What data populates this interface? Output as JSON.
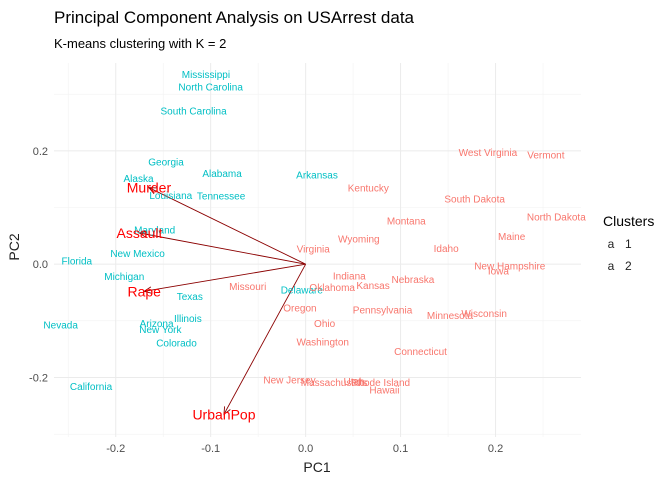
{
  "chart_data": {
    "type": "scatter",
    "title": "Principal Component Analysis on USArrest data",
    "subtitle": "K-means clustering with K = 2",
    "xlabel": "PC1",
    "ylabel": "PC2",
    "xlim": [
      -0.265,
      0.29
    ],
    "ylim": [
      -0.305,
      0.355
    ],
    "x_ticks": [
      -0.2,
      -0.1,
      0.0,
      0.1,
      0.2
    ],
    "x_tick_labels": [
      "-0.2",
      "-0.1",
      "0.0",
      "0.1",
      "0.2"
    ],
    "y_ticks": [
      -0.2,
      0.0,
      0.2
    ],
    "y_tick_labels": [
      "-0.2",
      "0.0",
      "0.2"
    ],
    "grid": true,
    "legend": {
      "title": "Clusters",
      "position": "right",
      "entries": [
        {
          "key": "1",
          "label": "1",
          "color": "#F8766D"
        },
        {
          "key": "2",
          "label": "2",
          "color": "#00BFC4"
        }
      ]
    },
    "points": [
      {
        "label": "Mississippi",
        "x": -0.105,
        "y": 0.335,
        "cluster": "2"
      },
      {
        "label": "North Carolina",
        "x": -0.1,
        "y": 0.313,
        "cluster": "2"
      },
      {
        "label": "South Carolina",
        "x": -0.118,
        "y": 0.27,
        "cluster": "2"
      },
      {
        "label": "Georgia",
        "x": -0.147,
        "y": 0.18,
        "cluster": "2"
      },
      {
        "label": "Alabama",
        "x": -0.088,
        "y": 0.16,
        "cluster": "2"
      },
      {
        "label": "Alaska",
        "x": -0.176,
        "y": 0.151,
        "cluster": "2"
      },
      {
        "label": "Louisiana",
        "x": -0.142,
        "y": 0.121,
        "cluster": "2"
      },
      {
        "label": "Tennessee",
        "x": -0.089,
        "y": 0.12,
        "cluster": "2"
      },
      {
        "label": "Arkansas",
        "x": 0.012,
        "y": 0.157,
        "cluster": "2"
      },
      {
        "label": "Maryland",
        "x": -0.159,
        "y": 0.06,
        "cluster": "2"
      },
      {
        "label": "New Mexico",
        "x": -0.177,
        "y": 0.019,
        "cluster": "2"
      },
      {
        "label": "Florida",
        "x": -0.241,
        "y": 0.006,
        "cluster": "2"
      },
      {
        "label": "Michigan",
        "x": -0.191,
        "y": -0.022,
        "cluster": "2"
      },
      {
        "label": "Texas",
        "x": -0.122,
        "y": -0.057,
        "cluster": "2"
      },
      {
        "label": "Illinois",
        "x": -0.124,
        "y": -0.096,
        "cluster": "2"
      },
      {
        "label": "Arizona",
        "x": -0.157,
        "y": -0.105,
        "cluster": "2"
      },
      {
        "label": "New York",
        "x": -0.153,
        "y": -0.115,
        "cluster": "2"
      },
      {
        "label": "Colorado",
        "x": -0.136,
        "y": -0.139,
        "cluster": "2"
      },
      {
        "label": "Nevada",
        "x": -0.258,
        "y": -0.107,
        "cluster": "2"
      },
      {
        "label": "California",
        "x": -0.226,
        "y": -0.216,
        "cluster": "2"
      },
      {
        "label": "Delaware",
        "x": -0.004,
        "y": -0.046,
        "cluster": "2"
      },
      {
        "label": "West Virginia",
        "x": 0.192,
        "y": 0.197,
        "cluster": "1"
      },
      {
        "label": "Vermont",
        "x": 0.253,
        "y": 0.193,
        "cluster": "1"
      },
      {
        "label": "Kentucky",
        "x": 0.066,
        "y": 0.134,
        "cluster": "1"
      },
      {
        "label": "South Dakota",
        "x": 0.178,
        "y": 0.115,
        "cluster": "1"
      },
      {
        "label": "North Dakota",
        "x": 0.264,
        "y": 0.083,
        "cluster": "1"
      },
      {
        "label": "Montana",
        "x": 0.106,
        "y": 0.076,
        "cluster": "1"
      },
      {
        "label": "Maine",
        "x": 0.217,
        "y": 0.049,
        "cluster": "1"
      },
      {
        "label": "Wyoming",
        "x": 0.056,
        "y": 0.044,
        "cluster": "1"
      },
      {
        "label": "Virginia",
        "x": 0.008,
        "y": 0.027,
        "cluster": "1"
      },
      {
        "label": "Idaho",
        "x": 0.148,
        "y": 0.028,
        "cluster": "1"
      },
      {
        "label": "New Hampshire",
        "x": 0.215,
        "y": -0.003,
        "cluster": "1"
      },
      {
        "label": "Iowa",
        "x": 0.203,
        "y": -0.012,
        "cluster": "1"
      },
      {
        "label": "Indiana",
        "x": 0.046,
        "y": -0.021,
        "cluster": "1"
      },
      {
        "label": "Nebraska",
        "x": 0.113,
        "y": -0.027,
        "cluster": "1"
      },
      {
        "label": "Missouri",
        "x": -0.061,
        "y": -0.039,
        "cluster": "1"
      },
      {
        "label": "Oklahoma",
        "x": 0.028,
        "y": -0.041,
        "cluster": "1"
      },
      {
        "label": "Kansas",
        "x": 0.071,
        "y": -0.038,
        "cluster": "1"
      },
      {
        "label": "Oregon",
        "x": -0.006,
        "y": -0.077,
        "cluster": "1"
      },
      {
        "label": "Pennsylvania",
        "x": 0.081,
        "y": -0.081,
        "cluster": "1"
      },
      {
        "label": "Minnesota",
        "x": 0.152,
        "y": -0.091,
        "cluster": "1"
      },
      {
        "label": "Wisconsin",
        "x": 0.188,
        "y": -0.087,
        "cluster": "1"
      },
      {
        "label": "Ohio",
        "x": 0.02,
        "y": -0.105,
        "cluster": "1"
      },
      {
        "label": "Washington",
        "x": 0.018,
        "y": -0.137,
        "cluster": "1"
      },
      {
        "label": "Connecticut",
        "x": 0.121,
        "y": -0.154,
        "cluster": "1"
      },
      {
        "label": "New Jersey",
        "x": -0.017,
        "y": -0.204,
        "cluster": "1"
      },
      {
        "label": "Massachusetts",
        "x": 0.03,
        "y": -0.209,
        "cluster": "1"
      },
      {
        "label": "Utah",
        "x": 0.051,
        "y": -0.207,
        "cluster": "1"
      },
      {
        "label": "Rhode Island",
        "x": 0.079,
        "y": -0.209,
        "cluster": "1"
      },
      {
        "label": "Hawaii",
        "x": 0.083,
        "y": -0.222,
        "cluster": "1"
      }
    ],
    "loadings": [
      {
        "label": "Murder",
        "x": -0.165,
        "y": 0.135
      },
      {
        "label": "Assault",
        "x": -0.175,
        "y": 0.055
      },
      {
        "label": "Rape",
        "x": -0.17,
        "y": -0.048
      },
      {
        "label": "UrbanPop",
        "x": -0.086,
        "y": -0.265
      }
    ],
    "loading_color": "#ff0000",
    "arrow_color": "#8b0000"
  }
}
